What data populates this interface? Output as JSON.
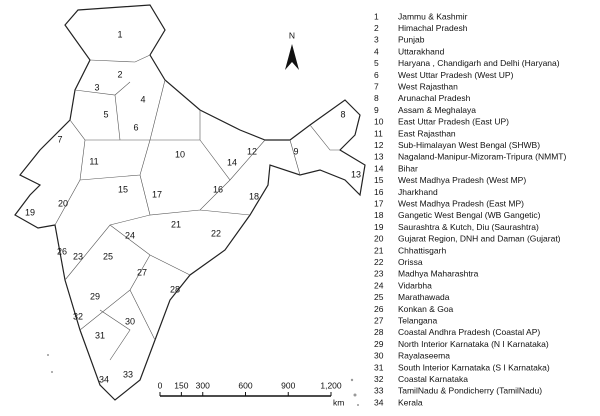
{
  "title_arrow": "N",
  "legend": [
    {
      "number": "1",
      "name": "Jammu & Kashmir"
    },
    {
      "number": "2",
      "name": "Himachal Pradesh"
    },
    {
      "number": "3",
      "name": "Punjab"
    },
    {
      "number": "4",
      "name": "Uttarakhand"
    },
    {
      "number": "5",
      "name": "Haryana , Chandigarh and Delhi (Haryana)"
    },
    {
      "number": "6",
      "name": "West Uttar Pradesh (West UP)"
    },
    {
      "number": "7",
      "name": "West Rajasthan"
    },
    {
      "number": "8",
      "name": "Arunachal Pradesh"
    },
    {
      "number": "9",
      "name": "Assam & Meghalaya"
    },
    {
      "number": "10",
      "name": "East Uttar Pradesh (East UP)"
    },
    {
      "number": "11",
      "name": "East Rajasthan"
    },
    {
      "number": "12",
      "name": "Sub-Himalayan West Bengal (SHWB)"
    },
    {
      "number": "13",
      "name": "Nagaland-Manipur-Mizoram-Tripura (NMMT)"
    },
    {
      "number": "14",
      "name": "Bihar"
    },
    {
      "number": "15",
      "name": "West Madhya Pradesh (West MP)"
    },
    {
      "number": "16",
      "name": "Jharkhand"
    },
    {
      "number": "17",
      "name": "West Madhya Pradesh (East MP)"
    },
    {
      "number": "18",
      "name": "Gangetic West Bengal (WB Gangetic)"
    },
    {
      "number": "19",
      "name": "Saurashtra & Kutch, Diu (Saurashtra)"
    },
    {
      "number": "20",
      "name": "Gujarat Region, DNH and Daman (Gujarat)"
    },
    {
      "number": "21",
      "name": "Chhattisgarh"
    },
    {
      "number": "22",
      "name": "Orissa"
    },
    {
      "number": "23",
      "name": "Madhya Maharashtra"
    },
    {
      "number": "24",
      "name": "Vidarbha"
    },
    {
      "number": "25",
      "name": "Marathawada"
    },
    {
      "number": "26",
      "name": "Konkan & Goa"
    },
    {
      "number": "27",
      "name": "Telangana"
    },
    {
      "number": "28",
      "name": "Coastal Andhra Pradesh (Coastal AP)"
    },
    {
      "number": "29",
      "name": "North Interior Karnataka (N I Karnataka)"
    },
    {
      "number": "30",
      "name": "Rayalaseema"
    },
    {
      "number": "31",
      "name": "South Interior Karnataka (S I Karnataka)"
    },
    {
      "number": "32",
      "name": "Coastal Karnataka"
    },
    {
      "number": "33",
      "name": "TamilNadu & Pondicherry (TamilNadu)"
    },
    {
      "number": "34",
      "name": "Kerala"
    }
  ],
  "scale_bar": {
    "ticks": [
      0,
      150,
      300,
      600,
      900,
      {
        "value": 1200,
        "label": "1,200"
      }
    ],
    "unit": "km"
  }
}
